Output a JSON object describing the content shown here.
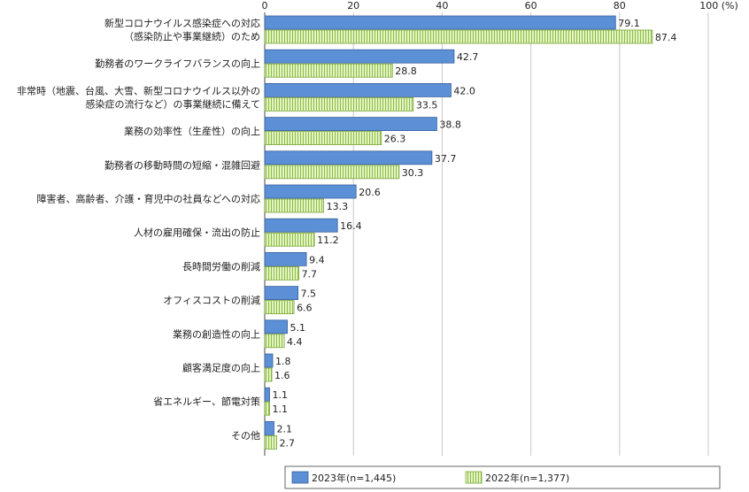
{
  "chart_data": {
    "type": "bar",
    "orientation": "horizontal",
    "xlim": [
      0,
      100
    ],
    "x_ticks": [
      "0",
      "20",
      "40",
      "60",
      "80",
      "100 (%)"
    ],
    "grid": true,
    "legend_position": "bottom-right",
    "categories": [
      [
        "新型コロナウイルス感染症への対応",
        "（感染防止や事業継続）のため"
      ],
      [
        "勤務者のワークライフバランスの向上"
      ],
      [
        "非常時（地震、台風、大雪、新型コロナウイルス以外の",
        "感染症の流行など）の事業継続に備えて"
      ],
      [
        "業務の効率性（生産性）の向上"
      ],
      [
        "勤務者の移動時間の短縮・混雑回避"
      ],
      [
        "障害者、高齢者、介護・育児中の社員などへの対応"
      ],
      [
        "人材の雇用確保・流出の防止"
      ],
      [
        "長時間労働の削減"
      ],
      [
        "オフィスコストの削減"
      ],
      [
        "業務の創造性の向上"
      ],
      [
        "顧客満足度の向上"
      ],
      [
        "省エネルギー、節電対策"
      ],
      [
        "その他"
      ]
    ],
    "series": [
      {
        "name": "2023年(n=1,445)",
        "color": "#5b8fd6",
        "stroke": "#3a5f99",
        "pattern": "solid",
        "values": [
          79.1,
          42.7,
          42.0,
          38.8,
          37.7,
          20.6,
          16.4,
          9.4,
          7.5,
          5.1,
          1.8,
          1.1,
          2.1
        ],
        "labels": [
          "79.1",
          "42.7",
          "42.0",
          "38.8",
          "37.7",
          "20.6",
          "16.4",
          "9.4",
          "7.5",
          "5.1",
          "1.8",
          "1.1",
          "2.1"
        ]
      },
      {
        "name": "2022年(n=1,377)",
        "color": "#cfe6a0",
        "stroke": "#7aa63a",
        "pattern": "vertical-stripes",
        "values": [
          87.4,
          28.8,
          33.5,
          26.3,
          30.3,
          13.3,
          11.2,
          7.7,
          6.6,
          4.4,
          1.6,
          1.1,
          2.7
        ],
        "labels": [
          "87.4",
          "28.8",
          "33.5",
          "26.3",
          "30.3",
          "13.3",
          "11.2",
          "7.7",
          "6.6",
          "4.4",
          "1.6",
          "1.1",
          "2.7"
        ]
      }
    ]
  }
}
